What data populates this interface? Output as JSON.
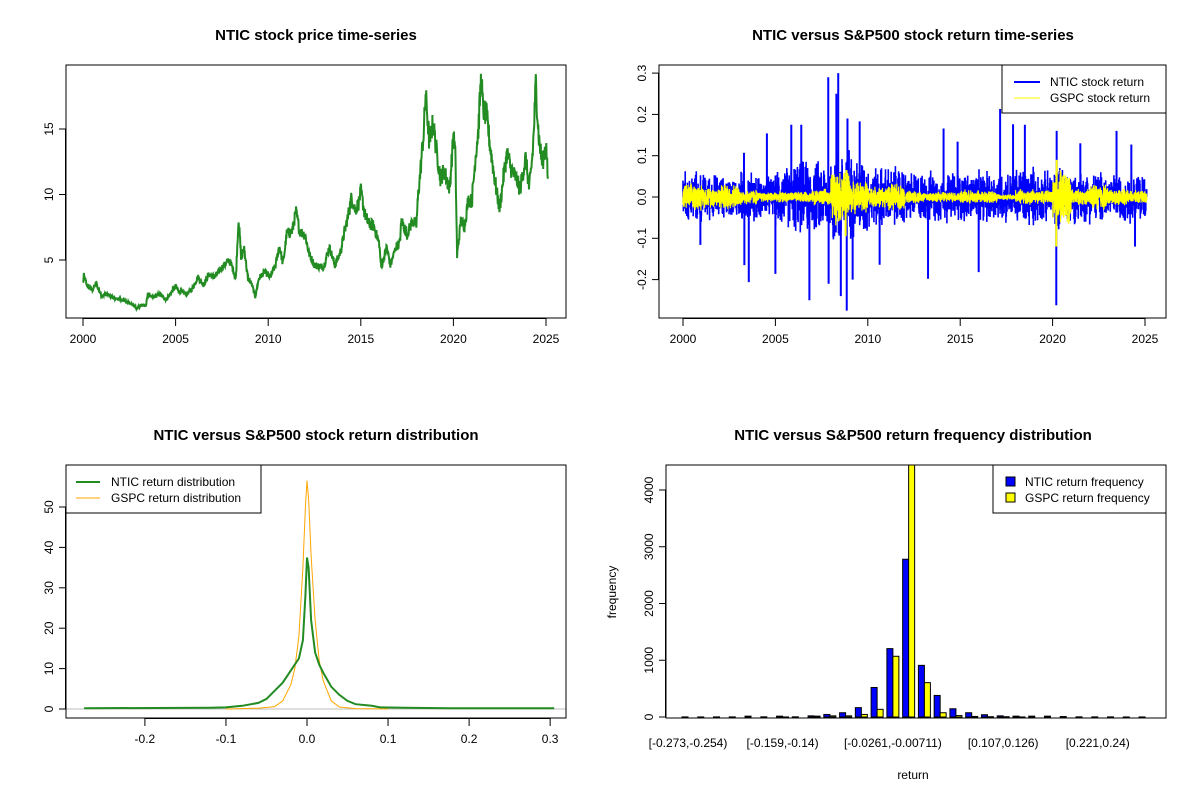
{
  "chart_data": [
    {
      "type": "line",
      "title": "NTIC stock price time-series",
      "xlabel": "",
      "ylabel": "",
      "xlim": [
        1999.6,
        2025.7
      ],
      "ylim": [
        0.7,
        19.8
      ],
      "x_ticks": [
        "2000",
        "2005",
        "2010",
        "2015",
        "2020",
        "2025"
      ],
      "y_ticks": [
        "5",
        "10",
        "15"
      ],
      "color": "#228B22",
      "series": [
        {
          "name": "NTIC price",
          "points": [
            [
              2000.0,
              3.2
            ],
            [
              2000.05,
              3.8
            ],
            [
              2000.2,
              3.1
            ],
            [
              2000.5,
              2.7
            ],
            [
              2000.7,
              3.2
            ],
            [
              2001.0,
              2.3
            ],
            [
              2001.3,
              2.4
            ],
            [
              2001.6,
              2.1
            ],
            [
              2002.0,
              2.0
            ],
            [
              2002.4,
              1.8
            ],
            [
              2002.7,
              1.6
            ],
            [
              2002.9,
              1.3
            ],
            [
              2003.2,
              1.6
            ],
            [
              2003.4,
              1.5
            ],
            [
              2003.5,
              2.4
            ],
            [
              2003.8,
              2.1
            ],
            [
              2004.1,
              2.4
            ],
            [
              2004.5,
              2.0
            ],
            [
              2004.8,
              2.6
            ],
            [
              2005.0,
              3.0
            ],
            [
              2005.2,
              2.6
            ],
            [
              2005.6,
              2.4
            ],
            [
              2005.9,
              2.8
            ],
            [
              2006.2,
              3.7
            ],
            [
              2006.5,
              3.1
            ],
            [
              2006.8,
              3.9
            ],
            [
              2007.1,
              3.7
            ],
            [
              2007.5,
              4.4
            ],
            [
              2007.9,
              5.0
            ],
            [
              2008.1,
              4.3
            ],
            [
              2008.25,
              3.5
            ],
            [
              2008.4,
              8.2
            ],
            [
              2008.55,
              5.0
            ],
            [
              2008.7,
              6.0
            ],
            [
              2008.9,
              3.6
            ],
            [
              2009.1,
              3.2
            ],
            [
              2009.3,
              2.2
            ],
            [
              2009.5,
              3.6
            ],
            [
              2009.8,
              4.1
            ],
            [
              2010.1,
              3.7
            ],
            [
              2010.4,
              4.6
            ],
            [
              2010.6,
              6.1
            ],
            [
              2010.8,
              4.7
            ],
            [
              2011.0,
              7.0
            ],
            [
              2011.3,
              7.2
            ],
            [
              2011.5,
              8.7
            ],
            [
              2011.7,
              7.2
            ],
            [
              2012.0,
              6.9
            ],
            [
              2012.2,
              5.5
            ],
            [
              2012.5,
              4.6
            ],
            [
              2012.8,
              4.5
            ],
            [
              2013.0,
              4.5
            ],
            [
              2013.3,
              6.0
            ],
            [
              2013.6,
              4.6
            ],
            [
              2013.9,
              5.6
            ],
            [
              2014.1,
              7.0
            ],
            [
              2014.3,
              8.3
            ],
            [
              2014.5,
              9.8
            ],
            [
              2014.7,
              8.8
            ],
            [
              2014.9,
              9.4
            ],
            [
              2015.0,
              10.3
            ],
            [
              2015.2,
              8.6
            ],
            [
              2015.4,
              7.8
            ],
            [
              2015.7,
              7.6
            ],
            [
              2016.0,
              6.2
            ],
            [
              2016.1,
              4.4
            ],
            [
              2016.4,
              6.0
            ],
            [
              2016.6,
              4.6
            ],
            [
              2016.9,
              6.0
            ],
            [
              2017.1,
              6.3
            ],
            [
              2017.2,
              8.0
            ],
            [
              2017.5,
              7.0
            ],
            [
              2017.8,
              8.0
            ],
            [
              2018.0,
              7.7
            ],
            [
              2018.1,
              10.0
            ],
            [
              2018.2,
              11.5
            ],
            [
              2018.4,
              14.8
            ],
            [
              2018.5,
              17.7
            ],
            [
              2018.7,
              14.0
            ],
            [
              2018.9,
              15.5
            ],
            [
              2019.1,
              13.2
            ],
            [
              2019.3,
              11.3
            ],
            [
              2019.5,
              11.8
            ],
            [
              2019.8,
              10.5
            ],
            [
              2020.0,
              14.5
            ],
            [
              2020.1,
              13.3
            ],
            [
              2020.2,
              5.3
            ],
            [
              2020.4,
              8.0
            ],
            [
              2020.6,
              7.6
            ],
            [
              2020.8,
              9.6
            ],
            [
              2021.0,
              9.5
            ],
            [
              2021.2,
              13.0
            ],
            [
              2021.35,
              15.0
            ],
            [
              2021.5,
              19.1
            ],
            [
              2021.6,
              16.5
            ],
            [
              2021.8,
              16.0
            ],
            [
              2022.0,
              13.5
            ],
            [
              2022.3,
              10.5
            ],
            [
              2022.5,
              8.9
            ],
            [
              2022.7,
              11.3
            ],
            [
              2022.9,
              13.2
            ],
            [
              2023.1,
              12.0
            ],
            [
              2023.4,
              11.2
            ],
            [
              2023.6,
              10.4
            ],
            [
              2023.9,
              12.8
            ],
            [
              2024.1,
              10.4
            ],
            [
              2024.3,
              13.5
            ],
            [
              2024.45,
              18.6
            ],
            [
              2024.6,
              14.5
            ],
            [
              2024.8,
              12.3
            ],
            [
              2025.0,
              14.0
            ],
            [
              2025.1,
              11.2
            ]
          ]
        }
      ]
    },
    {
      "type": "line",
      "title": "NTIC versus S&P500 stock return time-series",
      "xlabel": "",
      "ylabel": "",
      "xlim": [
        1999.6,
        2025.7
      ],
      "ylim": [
        -0.29,
        0.31
      ],
      "x_ticks": [
        "2000",
        "2005",
        "2010",
        "2015",
        "2020",
        "2025"
      ],
      "y_ticks": [
        "-0.2",
        "-0.1",
        "0.0",
        "0.1",
        "0.2",
        "0.3"
      ],
      "legend": {
        "position": "top-right",
        "entries": [
          "NTIC stock return",
          "GSPC stock return"
        ]
      },
      "series": [
        {
          "name": "NTIC stock return",
          "color": "#0000FF",
          "typical_abs_by_year": [
            0.05,
            0.045,
            0.04,
            0.05,
            0.04,
            0.06,
            0.07,
            0.07,
            0.1,
            0.08,
            0.06,
            0.06,
            0.05,
            0.05,
            0.05,
            0.05,
            0.05,
            0.05,
            0.06,
            0.05,
            0.06,
            0.05,
            0.05,
            0.045,
            0.05,
            0.045
          ],
          "spikes": [
            [
              2000.94,
              -0.116
            ],
            [
              2003.3,
              0.107
            ],
            [
              2003.32,
              -0.165
            ],
            [
              2003.56,
              -0.206
            ],
            [
              2004.54,
              0.154
            ],
            [
              2005.0,
              -0.186
            ],
            [
              2005.86,
              0.175
            ],
            [
              2006.4,
              0.175
            ],
            [
              2006.84,
              -0.25
            ],
            [
              2007.86,
              0.29
            ],
            [
              2007.88,
              -0.21
            ],
            [
              2008.3,
              0.25
            ],
            [
              2008.4,
              0.3
            ],
            [
              2008.54,
              -0.24
            ],
            [
              2008.86,
              -0.275
            ],
            [
              2008.9,
              0.19
            ],
            [
              2009.18,
              -0.2
            ],
            [
              2009.56,
              0.183
            ],
            [
              2010.64,
              -0.164
            ],
            [
              2013.26,
              -0.198
            ],
            [
              2014.1,
              0.166
            ],
            [
              2014.86,
              0.134
            ],
            [
              2016.0,
              -0.182
            ],
            [
              2017.16,
              0.213
            ],
            [
              2017.86,
              0.176
            ],
            [
              2018.5,
              0.175
            ],
            [
              2020.2,
              -0.262
            ],
            [
              2020.22,
              0.16
            ],
            [
              2021.5,
              0.13
            ],
            [
              2023.46,
              0.16
            ],
            [
              2024.26,
              0.127
            ],
            [
              2024.46,
              -0.12
            ]
          ]
        },
        {
          "name": "GSPC stock return",
          "color": "#FFFF00",
          "typical_abs_by_year": [
            0.025,
            0.02,
            0.025,
            0.015,
            0.01,
            0.01,
            0.01,
            0.015,
            0.05,
            0.03,
            0.02,
            0.025,
            0.012,
            0.01,
            0.01,
            0.013,
            0.012,
            0.006,
            0.015,
            0.012,
            0.05,
            0.015,
            0.025,
            0.015,
            0.012,
            0.012
          ],
          "spikes": [
            [
              2008.8,
              -0.095
            ],
            [
              2008.85,
              0.065
            ],
            [
              2020.2,
              -0.12
            ],
            [
              2020.22,
              0.09
            ]
          ]
        }
      ]
    },
    {
      "type": "line",
      "title": "NTIC versus S&P500 stock return distribution",
      "xlabel": "",
      "ylabel": "",
      "xlim": [
        -0.29,
        0.32
      ],
      "ylim": [
        -2,
        57
      ],
      "x_ticks": [
        "-0.2",
        "-0.1",
        "0.0",
        "0.1",
        "0.2",
        "0.3"
      ],
      "y_ticks": [
        "0",
        "10",
        "20",
        "30",
        "40",
        "50"
      ],
      "legend": {
        "position": "top-left",
        "entries": [
          "NTIC return distribution",
          "GSPC return distribution"
        ]
      },
      "series": [
        {
          "name": "NTIC return distribution",
          "color": "#228B22",
          "x": [
            -0.275,
            -0.12,
            -0.1,
            -0.08,
            -0.06,
            -0.05,
            -0.04,
            -0.03,
            -0.02,
            -0.015,
            -0.01,
            -0.005,
            -0.002,
            0,
            0.002,
            0.005,
            0.01,
            0.015,
            0.02,
            0.03,
            0.04,
            0.05,
            0.06,
            0.08,
            0.09,
            0.12,
            0.175,
            0.305
          ],
          "y": [
            0.2,
            0.3,
            0.4,
            0.8,
            1.5,
            2.5,
            4.5,
            6.5,
            9.5,
            11,
            12.5,
            17,
            28,
            37.5,
            35,
            22,
            14,
            11,
            9,
            5.5,
            3.5,
            2,
            1.2,
            0.8,
            0.4,
            0.3,
            0.2,
            0.2
          ]
        },
        {
          "name": "GSPC return distribution",
          "color": "#FFA500",
          "x": [
            -0.1,
            -0.06,
            -0.04,
            -0.03,
            -0.02,
            -0.015,
            -0.01,
            -0.005,
            -0.002,
            0,
            0.002,
            0.005,
            0.01,
            0.015,
            0.02,
            0.03,
            0.04,
            0.06,
            0.1
          ],
          "y": [
            0,
            0.2,
            0.6,
            2,
            6,
            10,
            18,
            35,
            50,
            56.5,
            52,
            38,
            22,
            12,
            7,
            2,
            0.5,
            0.1,
            0
          ]
        }
      ]
    },
    {
      "type": "bar",
      "title": "NTIC versus S&P500 return frequency distribution",
      "xlabel": "return",
      "ylabel": "frequency",
      "ylim": [
        0,
        4400
      ],
      "y_ticks": [
        "0",
        "1000",
        "2000",
        "3000",
        "4000"
      ],
      "bin_count": 30,
      "labeled_bins": [
        {
          "bin": 1,
          "label": "[-0.273,-0.254)"
        },
        {
          "bin": 7,
          "label": "[-0.159,-0.14)"
        },
        {
          "bin": 14,
          "label": "[-0.0261,-0.00711)"
        },
        {
          "bin": 21,
          "label": "[0.107,0.126)"
        },
        {
          "bin": 27,
          "label": "[0.221,0.24)"
        }
      ],
      "legend": {
        "position": "top-right",
        "entries": [
          "NTIC return frequency",
          "GSPC return frequency"
        ]
      },
      "series": [
        {
          "name": "NTIC return frequency",
          "color": "#0000FF",
          "values": [
            2,
            1,
            2,
            2,
            15,
            3,
            15,
            3,
            20,
            45,
            75,
            165,
            520,
            1205,
            2780,
            910,
            380,
            145,
            75,
            40,
            20,
            15,
            15,
            15,
            8,
            3,
            2,
            2,
            1,
            1
          ]
        },
        {
          "name": "GSPC return frequency",
          "color": "#FFFF00",
          "values": [
            0,
            0,
            0,
            0,
            0,
            0,
            1,
            0,
            15,
            20,
            20,
            45,
            135,
            1070,
            4600,
            605,
            75,
            25,
            10,
            5,
            5,
            1,
            0,
            0,
            0,
            0,
            0,
            0,
            0,
            0
          ]
        }
      ]
    }
  ]
}
